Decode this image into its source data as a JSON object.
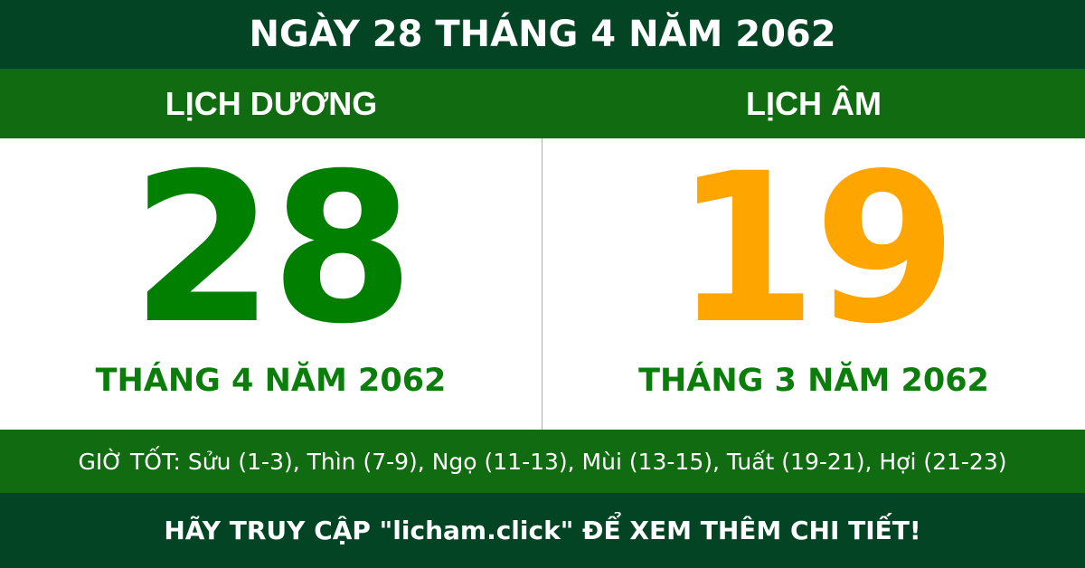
{
  "title": "NGÀY 28 THÁNG 4 NĂM 2062",
  "solar": {
    "heading": "LỊCH DƯƠNG",
    "day": "28",
    "month_year": "THÁNG 4 NĂM 2062"
  },
  "lunar": {
    "heading": "LỊCH ÂM",
    "day": "19",
    "month_year": "THÁNG 3 NĂM 2062"
  },
  "good_hours": "GIỜ TỐT: Sửu (1-3), Thìn (7-9), Ngọ (11-13), Mùi (13-15), Tuất (19-21), Hợi (21-23)",
  "footer": "HÃY TRUY CẬP \"licham.click\" ĐỂ XEM THÊM CHI TIẾT!",
  "colors": {
    "dark_green": "#024424",
    "green": "#116b11",
    "solar_number": "#007f00",
    "lunar_number": "#ffa500"
  }
}
